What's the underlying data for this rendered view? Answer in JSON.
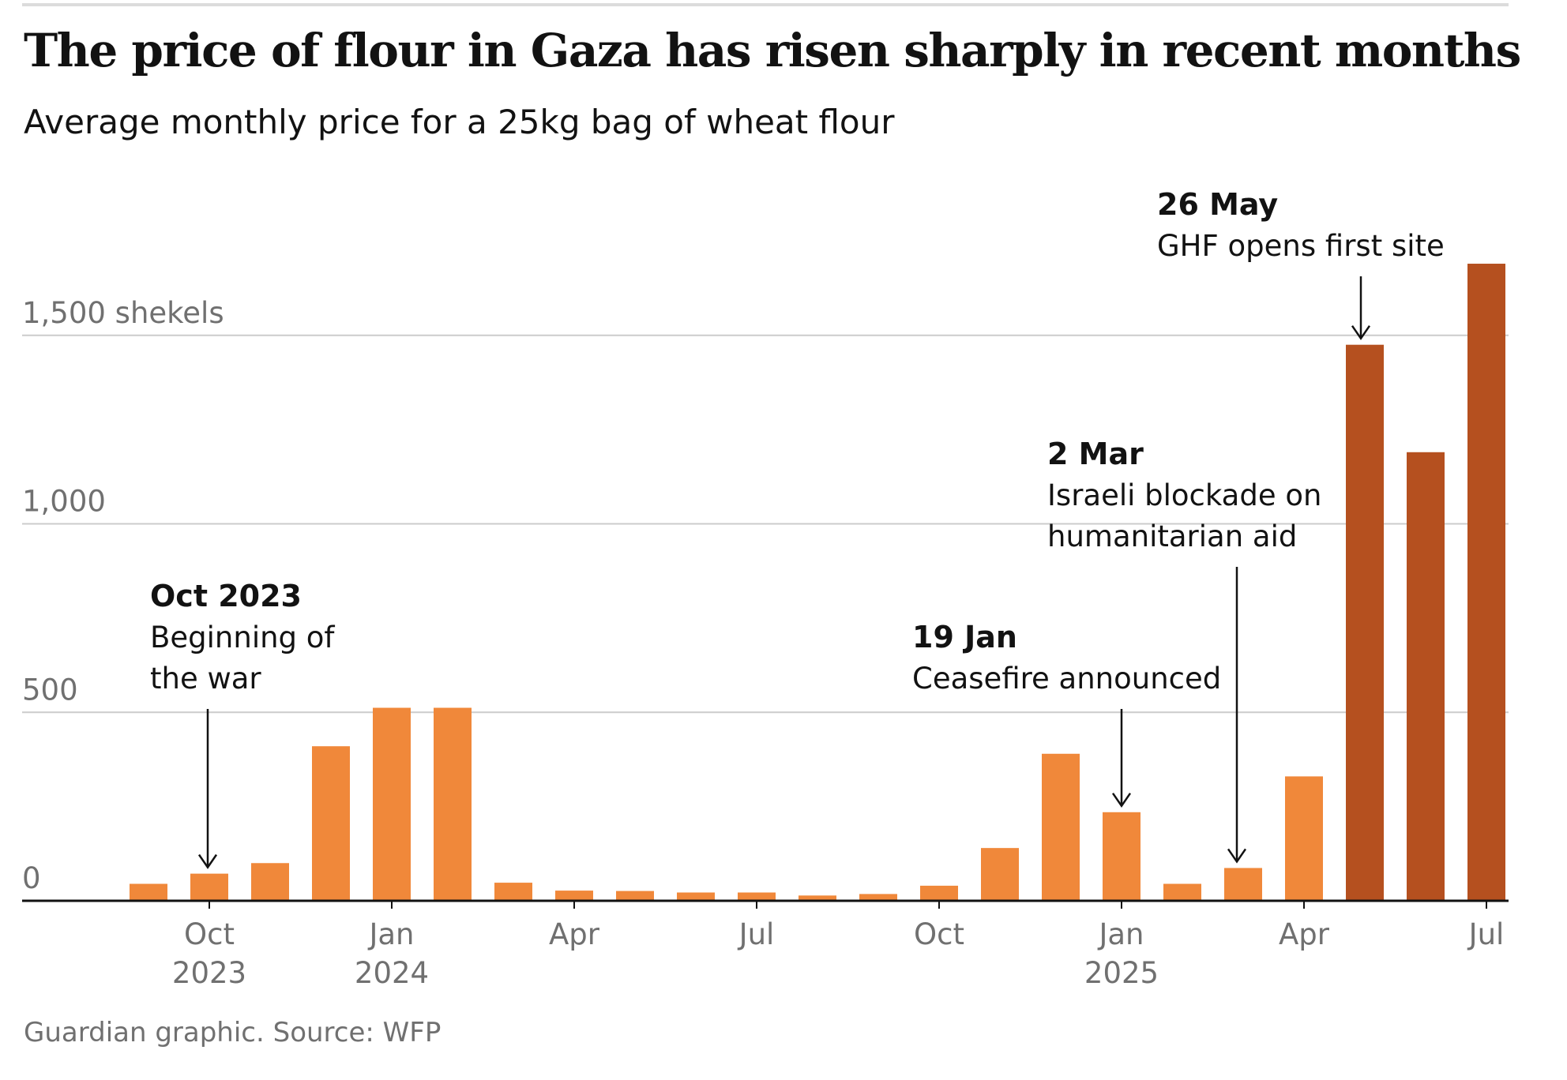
{
  "title": "The price of flour in Gaza has risen sharply in recent months",
  "subtitle": "Average monthly price for a 25kg bag of wheat flour",
  "source": "Guardian graphic. Source: WFP",
  "colors": {
    "bar": "#f0883a",
    "bar_highlight": "#b5501f",
    "grid": "#cccccc",
    "axis": "#121212"
  },
  "chart_data": {
    "type": "bar",
    "title": "The price of flour in Gaza has risen sharply in recent months",
    "subtitle": "Average monthly price for a 25kg bag of wheat flour",
    "ylabel": "shekels",
    "ylim": [
      0,
      1720
    ],
    "yticks": [
      {
        "value": 0,
        "label": "0"
      },
      {
        "value": 500,
        "label": "500"
      },
      {
        "value": 1000,
        "label": "1,000"
      },
      {
        "value": 1500,
        "label": "1,500 shekels"
      }
    ],
    "grid": true,
    "categories": [
      "Sep 2023",
      "Oct 2023",
      "Nov 2023",
      "Dec 2023",
      "Jan 2024",
      "Feb 2024",
      "Mar 2024",
      "Apr 2024",
      "May 2024",
      "Jun 2024",
      "Jul 2024",
      "Aug 2024",
      "Sep 2024",
      "Oct 2024",
      "Nov 2024",
      "Dec 2024",
      "Jan 2025",
      "Feb 2025",
      "Mar 2025",
      "Apr 2025",
      "May 2025",
      "Jun 2025",
      "Jul 2025"
    ],
    "values": [
      45,
      72,
      100,
      410,
      512,
      512,
      48,
      27,
      26,
      22,
      22,
      14,
      18,
      40,
      140,
      390,
      235,
      45,
      87,
      330,
      1475,
      1190,
      1690
    ],
    "highlight": [
      false,
      false,
      false,
      false,
      false,
      false,
      false,
      false,
      false,
      false,
      false,
      false,
      false,
      false,
      false,
      false,
      false,
      false,
      false,
      false,
      true,
      true,
      true
    ],
    "xticks": [
      {
        "index": 1,
        "label": "Oct",
        "year": "2023"
      },
      {
        "index": 4,
        "label": "Jan",
        "year": "2024"
      },
      {
        "index": 7,
        "label": "Apr",
        "year": ""
      },
      {
        "index": 10,
        "label": "Jul",
        "year": ""
      },
      {
        "index": 13,
        "label": "Oct",
        "year": ""
      },
      {
        "index": 16,
        "label": "Jan",
        "year": "2025"
      },
      {
        "index": 19,
        "label": "Apr",
        "year": ""
      },
      {
        "index": 22,
        "label": "Jul",
        "year": ""
      }
    ],
    "annotations": [
      {
        "date": "Oct 2023",
        "lines": [
          "Beginning of",
          "the war"
        ],
        "index": 1
      },
      {
        "date": "19 Jan",
        "lines": [
          "Ceasefire announced"
        ],
        "index": 16
      },
      {
        "date": "2 Mar",
        "lines": [
          "Israeli blockade on",
          "humanitarian aid"
        ],
        "index": 18
      },
      {
        "date": "26 May",
        "lines": [
          "GHF opens first site"
        ],
        "index": 20
      }
    ]
  }
}
